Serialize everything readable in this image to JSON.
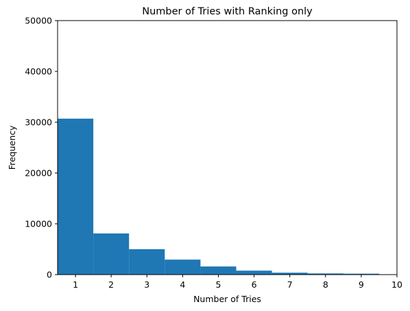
{
  "chart_data": {
    "type": "bar",
    "title": "Number of Tries with Ranking only",
    "xlabel": "Number of Tries",
    "ylabel": "Frequency",
    "x": [
      1,
      2,
      3,
      4,
      5,
      6,
      7,
      8,
      9
    ],
    "values": [
      30700,
      8100,
      5000,
      2950,
      1600,
      780,
      380,
      230,
      180
    ],
    "bin_width": 1,
    "xlim": [
      0.5,
      10
    ],
    "ylim": [
      0,
      50000
    ],
    "xticks": [
      1,
      2,
      3,
      4,
      5,
      6,
      7,
      8,
      9,
      10
    ],
    "yticks": [
      0,
      10000,
      20000,
      30000,
      40000,
      50000
    ],
    "bar_color": "#1f77b4",
    "grid": false,
    "legend": "none"
  }
}
